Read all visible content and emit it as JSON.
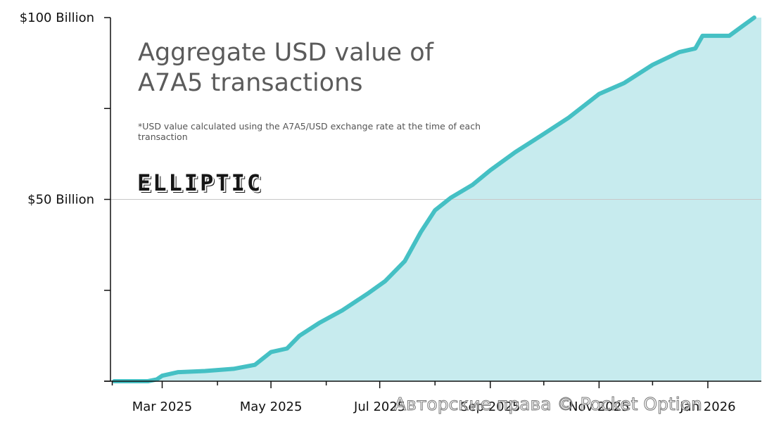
{
  "title_line1": "Aggregate USD value of",
  "title_line2": "A7A5 transactions",
  "note": "*USD value calculated using the A7A5/USD exchange rate at the time of each transaction",
  "logo_text": "ELLIPTIC",
  "watermark": "Авторские права © Pocket Option",
  "chart_data": {
    "type": "area",
    "x_unit": "date",
    "y_unit": "USD billion",
    "ylim": [
      0,
      100
    ],
    "xlim": [
      "2025-01-31",
      "2026-01-31"
    ],
    "yticks": [
      {
        "value": 0,
        "label": ""
      },
      {
        "value": 25,
        "label": ""
      },
      {
        "value": 50,
        "label": "$50 Billion"
      },
      {
        "value": 75,
        "label": ""
      },
      {
        "value": 100,
        "label": "$100 Billion"
      }
    ],
    "xticks_major": [
      {
        "date": "2025-03-01",
        "label": "Mar 2025"
      },
      {
        "date": "2025-05-01",
        "label": "May 2025"
      },
      {
        "date": "2025-07-01",
        "label": "Jul 2025"
      },
      {
        "date": "2025-09-01",
        "label": "Sep 2025"
      },
      {
        "date": "2025-11-01",
        "label": "Nov 2025"
      },
      {
        "date": "2026-01-01",
        "label": "Jan 2026"
      }
    ],
    "xticks_minor": [
      "2025-02-01",
      "2025-04-01",
      "2025-06-01",
      "2025-08-01",
      "2025-10-01",
      "2025-12-01"
    ],
    "grid": {
      "y_at": [
        50
      ]
    },
    "line_color": "#45c0c4",
    "fill_color": "#c7ebee",
    "grid_color": "#c8c8c8",
    "axis_color": "#111111",
    "points": [
      {
        "x": "2025-02-02",
        "y": 0
      },
      {
        "x": "2025-02-21",
        "y": 0
      },
      {
        "x": "2025-02-26",
        "y": 0.5
      },
      {
        "x": "2025-03-01",
        "y": 1.5
      },
      {
        "x": "2025-03-10",
        "y": 2.5
      },
      {
        "x": "2025-03-25",
        "y": 2.8
      },
      {
        "x": "2025-04-10",
        "y": 3.4
      },
      {
        "x": "2025-04-22",
        "y": 4.5
      },
      {
        "x": "2025-05-01",
        "y": 8
      },
      {
        "x": "2025-05-10",
        "y": 9
      },
      {
        "x": "2025-05-17",
        "y": 12.5
      },
      {
        "x": "2025-05-28",
        "y": 16
      },
      {
        "x": "2025-06-10",
        "y": 19.5
      },
      {
        "x": "2025-06-24",
        "y": 24
      },
      {
        "x": "2025-07-04",
        "y": 27.5
      },
      {
        "x": "2025-07-15",
        "y": 33
      },
      {
        "x": "2025-07-24",
        "y": 41
      },
      {
        "x": "2025-08-01",
        "y": 47
      },
      {
        "x": "2025-08-10",
        "y": 50.5
      },
      {
        "x": "2025-08-22",
        "y": 54
      },
      {
        "x": "2025-09-01",
        "y": 58
      },
      {
        "x": "2025-09-15",
        "y": 63
      },
      {
        "x": "2025-10-01",
        "y": 68
      },
      {
        "x": "2025-10-15",
        "y": 72.5
      },
      {
        "x": "2025-11-01",
        "y": 79
      },
      {
        "x": "2025-11-15",
        "y": 82
      },
      {
        "x": "2025-12-01",
        "y": 87
      },
      {
        "x": "2025-12-16",
        "y": 90.5
      },
      {
        "x": "2025-12-25",
        "y": 91.5
      },
      {
        "x": "2025-12-29",
        "y": 95
      },
      {
        "x": "2026-01-13",
        "y": 95
      },
      {
        "x": "2026-01-20",
        "y": 97.5
      },
      {
        "x": "2026-01-27",
        "y": 100
      }
    ]
  }
}
